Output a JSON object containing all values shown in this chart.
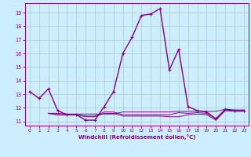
{
  "xlabel": "Windchill (Refroidissement éolien,°C)",
  "background_color": "#cceeff",
  "grid_color": "#aacccc",
  "line_color": "#880088",
  "x_min": -0.5,
  "x_max": 23.5,
  "y_min": 10.7,
  "y_max": 19.7,
  "yticks": [
    11,
    12,
    13,
    14,
    15,
    16,
    17,
    18,
    19
  ],
  "xticks": [
    0,
    1,
    2,
    3,
    4,
    5,
    6,
    7,
    8,
    9,
    10,
    11,
    12,
    13,
    14,
    15,
    16,
    17,
    18,
    19,
    20,
    21,
    22,
    23
  ],
  "series_main": {
    "x": [
      0,
      1,
      2,
      3,
      4,
      5,
      6,
      7,
      8,
      9,
      10,
      11,
      12,
      13,
      14,
      15,
      16,
      17,
      18,
      19,
      20,
      21,
      22,
      23
    ],
    "y": [
      13.2,
      12.7,
      13.4,
      11.8,
      11.5,
      11.5,
      11.1,
      11.1,
      12.1,
      13.2,
      16.0,
      17.2,
      18.8,
      18.9,
      19.3,
      14.8,
      16.3,
      12.1,
      11.8,
      11.7,
      11.2,
      11.9,
      11.8,
      11.8
    ],
    "color": "#880088",
    "linewidth": 1.0,
    "marker": "+",
    "markersize": 3.5
  },
  "flat_lines": [
    {
      "x": [
        2,
        3,
        4,
        5,
        6,
        7,
        8,
        9,
        10,
        11,
        12,
        13,
        14,
        15,
        16,
        17,
        18,
        19,
        20,
        21,
        22,
        23
      ],
      "y": [
        11.6,
        11.6,
        11.55,
        11.55,
        11.55,
        11.55,
        11.55,
        11.55,
        11.7,
        11.7,
        11.7,
        11.7,
        11.7,
        11.7,
        11.75,
        11.75,
        11.75,
        11.75,
        11.75,
        11.9,
        11.85,
        11.85
      ]
    },
    {
      "x": [
        2,
        3,
        4,
        5,
        6,
        7,
        8,
        9,
        10,
        11,
        12,
        13,
        14,
        15,
        16,
        17,
        18,
        19,
        20,
        21,
        22,
        23
      ],
      "y": [
        11.6,
        11.5,
        11.5,
        11.5,
        11.4,
        11.4,
        11.7,
        11.7,
        11.5,
        11.5,
        11.5,
        11.5,
        11.5,
        11.5,
        11.65,
        11.6,
        11.65,
        11.6,
        11.2,
        11.85,
        11.8,
        11.8
      ]
    },
    {
      "x": [
        2,
        3,
        4,
        5,
        6,
        7,
        8,
        9,
        10,
        11,
        12,
        13,
        14,
        15,
        16,
        17,
        18,
        19,
        20,
        21,
        22,
        23
      ],
      "y": [
        11.6,
        11.5,
        11.5,
        11.5,
        11.35,
        11.35,
        11.6,
        11.6,
        11.4,
        11.4,
        11.4,
        11.4,
        11.4,
        11.35,
        11.35,
        11.5,
        11.55,
        11.5,
        11.1,
        11.8,
        11.75,
        11.75
      ]
    }
  ]
}
